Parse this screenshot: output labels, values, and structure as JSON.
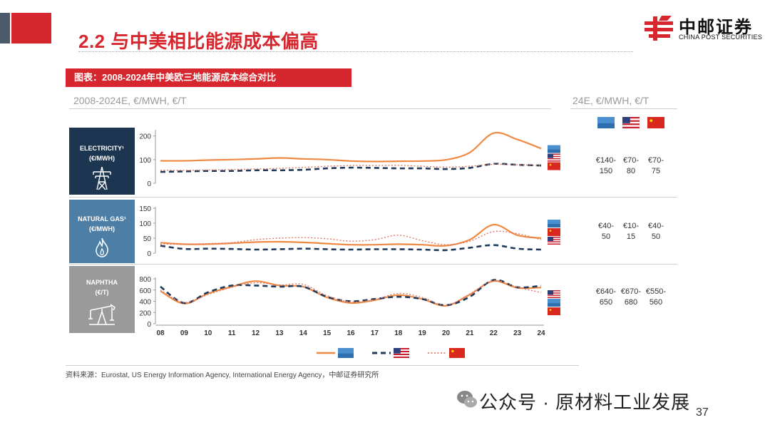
{
  "header": {
    "title": "2.2 与中美相比能源成本偏高",
    "logo_cn": "中邮证券",
    "logo_en": "CHINA POST SECURITIES"
  },
  "figure": {
    "caption": "图表：2008-2024年中美欧三地能源成本综合对比",
    "left_subtitle": "2008-2024E, €/MWH, €/T",
    "right_subtitle": "24E, €/MWH, €/T",
    "right_header_flags": [
      "eu",
      "us",
      "cn"
    ],
    "source": "资料来源：Eurostat, US Energy Information Agency, International Energy Agency，中邮证券研究所"
  },
  "panels": [
    {
      "label_line1": "ELECTRICITY¹",
      "label_line2": "(€/MWH)",
      "color": "#1c3550",
      "icon": "power-tower-icon",
      "ranges": [
        [
          "€140-",
          "150"
        ],
        [
          "€70-",
          "80"
        ],
        [
          "€70-",
          "75"
        ]
      ]
    },
    {
      "label_line1": "NATURAL GAS¹",
      "label_line2": "(€/MWH)",
      "color": "#4d7fa6",
      "icon": "flame-icon",
      "ranges": [
        [
          "€40-",
          "50"
        ],
        [
          "€10-",
          "15"
        ],
        [
          "€40-",
          "50"
        ]
      ]
    },
    {
      "label_line1": "NAPHTHA",
      "label_line2": "(€/T)",
      "color": "#9a9a9a",
      "icon": "oil-pump-icon",
      "ranges": [
        [
          "€640-",
          "650"
        ],
        [
          "€670-",
          "680"
        ],
        [
          "€550-",
          "560"
        ]
      ]
    }
  ],
  "colors": {
    "eu": "#ef8a45",
    "us": "#1f3a5a",
    "cn": "#e07a68"
  },
  "footer": {
    "wechat": "公众号 · 原材料工业发展",
    "page": "37"
  },
  "chart_data": [
    {
      "type": "line",
      "name": "electricity",
      "x": [
        "08",
        "09",
        "10",
        "11",
        "12",
        "13",
        "14",
        "15",
        "16",
        "17",
        "18",
        "19",
        "20",
        "21",
        "22",
        "23",
        "24"
      ],
      "ylim": [
        0,
        220
      ],
      "yticks": [
        "0",
        "100",
        "200"
      ],
      "series": [
        {
          "key": "eu",
          "style": "solid",
          "values": [
            95,
            95,
            98,
            100,
            103,
            107,
            103,
            100,
            94,
            92,
            93,
            94,
            99,
            130,
            212,
            185,
            147
          ]
        },
        {
          "key": "us",
          "style": "dashed",
          "values": [
            48,
            50,
            52,
            52,
            55,
            55,
            57,
            63,
            66,
            65,
            63,
            63,
            60,
            65,
            82,
            78,
            75
          ]
        },
        {
          "key": "cn",
          "style": "dotted",
          "values": [
            55,
            55,
            56,
            58,
            60,
            63,
            67,
            72,
            75,
            75,
            76,
            72,
            68,
            72,
            80,
            78,
            75
          ]
        }
      ],
      "end_flags": [
        "eu",
        "us",
        "cn"
      ]
    },
    {
      "type": "line",
      "name": "natural_gas",
      "x": [
        "08",
        "09",
        "10",
        "11",
        "12",
        "13",
        "14",
        "15",
        "16",
        "17",
        "18",
        "19",
        "20",
        "21",
        "22",
        "23",
        "24"
      ],
      "ylim": [
        0,
        150
      ],
      "yticks": [
        "0",
        "50",
        "100",
        "150"
      ],
      "series": [
        {
          "key": "eu",
          "style": "solid",
          "values": [
            35,
            30,
            30,
            33,
            37,
            38,
            36,
            32,
            28,
            28,
            30,
            28,
            25,
            45,
            95,
            60,
            50
          ]
        },
        {
          "key": "us",
          "style": "dashed",
          "values": [
            25,
            14,
            15,
            14,
            12,
            13,
            15,
            13,
            12,
            13,
            13,
            12,
            10,
            18,
            27,
            15,
            12
          ]
        },
        {
          "key": "cn",
          "style": "dotted",
          "values": [
            30,
            30,
            32,
            35,
            45,
            50,
            52,
            48,
            40,
            45,
            60,
            42,
            28,
            40,
            72,
            65,
            45
          ]
        }
      ],
      "end_flags": [
        "eu",
        "cn",
        "us"
      ]
    },
    {
      "type": "line",
      "name": "naphtha",
      "x": [
        "08",
        "09",
        "10",
        "11",
        "12",
        "13",
        "14",
        "15",
        "16",
        "17",
        "18",
        "19",
        "20",
        "21",
        "22",
        "23",
        "24"
      ],
      "xticks_shown": true,
      "ylim": [
        0,
        800
      ],
      "yticks": [
        "0",
        "200",
        "400",
        "600",
        "800"
      ],
      "series": [
        {
          "key": "eu",
          "style": "solid",
          "values": [
            580,
            360,
            540,
            660,
            760,
            680,
            660,
            470,
            370,
            420,
            510,
            440,
            320,
            520,
            760,
            640,
            645
          ]
        },
        {
          "key": "us",
          "style": "dashed",
          "values": [
            660,
            370,
            560,
            680,
            680,
            660,
            660,
            480,
            400,
            440,
            480,
            440,
            330,
            480,
            780,
            650,
            675
          ]
        },
        {
          "key": "cn",
          "style": "dotted",
          "values": [
            600,
            380,
            520,
            650,
            730,
            690,
            700,
            500,
            390,
            430,
            540,
            470,
            330,
            530,
            770,
            650,
            555
          ]
        }
      ],
      "end_flags": [
        "us",
        "eu",
        "cn"
      ]
    }
  ]
}
